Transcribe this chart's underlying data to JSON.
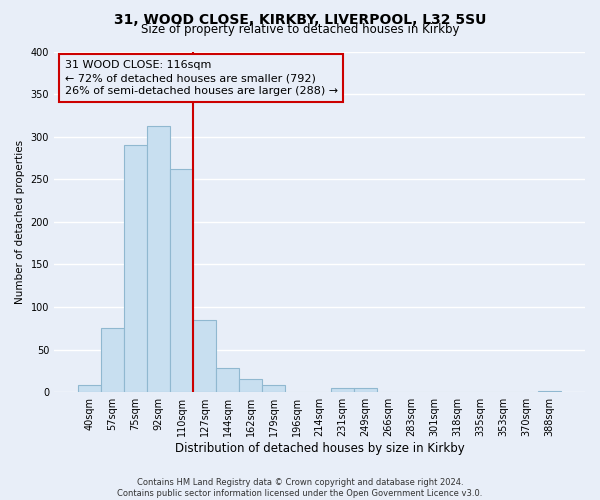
{
  "title1": "31, WOOD CLOSE, KIRKBY, LIVERPOOL, L32 5SU",
  "title2": "Size of property relative to detached houses in Kirkby",
  "xlabel": "Distribution of detached houses by size in Kirkby",
  "ylabel": "Number of detached properties",
  "bar_labels": [
    "40sqm",
    "57sqm",
    "75sqm",
    "92sqm",
    "110sqm",
    "127sqm",
    "144sqm",
    "162sqm",
    "179sqm",
    "196sqm",
    "214sqm",
    "231sqm",
    "249sqm",
    "266sqm",
    "283sqm",
    "301sqm",
    "318sqm",
    "335sqm",
    "353sqm",
    "370sqm",
    "388sqm"
  ],
  "bar_values": [
    8,
    75,
    290,
    313,
    262,
    85,
    28,
    16,
    8,
    0,
    0,
    5,
    5,
    0,
    0,
    0,
    0,
    0,
    0,
    0,
    2
  ],
  "bar_color": "#c8dff0",
  "bar_edge_color": "#90b8d0",
  "vline_x_index": 4,
  "vline_color": "#cc0000",
  "annotation_text": "31 WOOD CLOSE: 116sqm\n← 72% of detached houses are smaller (792)\n26% of semi-detached houses are larger (288) →",
  "annotation_box_edgecolor": "#cc0000",
  "ylim": [
    0,
    400
  ],
  "yticks": [
    0,
    50,
    100,
    150,
    200,
    250,
    300,
    350,
    400
  ],
  "footer": "Contains HM Land Registry data © Crown copyright and database right 2024.\nContains public sector information licensed under the Open Government Licence v3.0.",
  "bg_color": "#e8eef8"
}
